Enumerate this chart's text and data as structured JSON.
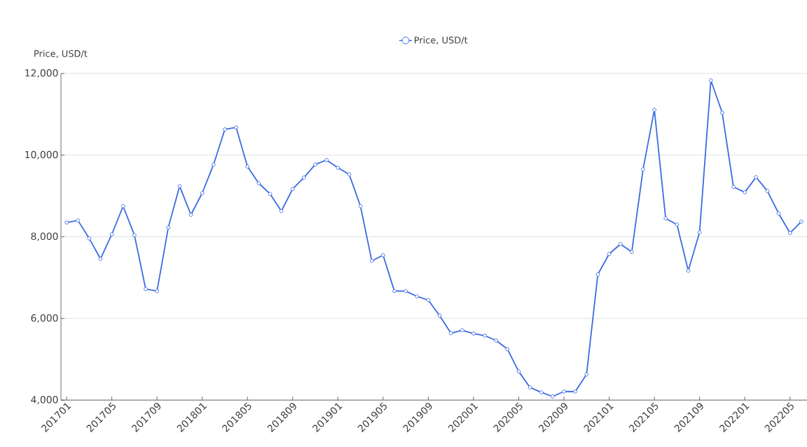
{
  "chart_data": {
    "type": "line",
    "ylabel": "Price, USD/t",
    "categories": [
      "201701",
      null,
      null,
      null,
      "201705",
      null,
      null,
      null,
      "201709",
      null,
      null,
      null,
      "201801",
      null,
      null,
      null,
      "201805",
      null,
      null,
      null,
      "201809",
      null,
      null,
      null,
      "201901",
      null,
      null,
      null,
      "201905",
      null,
      null,
      null,
      "201909",
      null,
      null,
      null,
      "202001",
      null,
      null,
      null,
      "202005",
      null,
      null,
      null,
      "202009",
      null,
      null,
      null,
      "202101",
      null,
      null,
      null,
      "202105",
      null,
      null,
      null,
      "202109",
      null,
      null,
      null,
      "202201",
      null,
      null,
      null,
      "202205",
      null
    ],
    "series": [
      {
        "name": "Price, USD/t",
        "color": "#3b6be0",
        "values": [
          8350,
          8400,
          7960,
          7460,
          8060,
          8750,
          8040,
          6720,
          6670,
          8230,
          9240,
          8540,
          9070,
          9770,
          10630,
          10680,
          9720,
          9310,
          9050,
          8630,
          9170,
          9450,
          9770,
          9880,
          9690,
          9530,
          8750,
          7410,
          7550,
          6670,
          6670,
          6540,
          6450,
          6070,
          5640,
          5710,
          5630,
          5580,
          5460,
          5250,
          4700,
          4310,
          4190,
          4090,
          4210,
          4210,
          4630,
          7080,
          7580,
          7820,
          7630,
          9650,
          11110,
          8450,
          8300,
          7170,
          8110,
          11830,
          11040,
          9220,
          9090,
          9460,
          9120,
          8570,
          8090,
          8370
        ]
      }
    ],
    "ylim": [
      4000,
      12000
    ],
    "yticks": [
      {
        "value": 4000,
        "label": "4,000"
      },
      {
        "value": 6000,
        "label": "6,000"
      },
      {
        "value": 8000,
        "label": "8,000"
      },
      {
        "value": 10000,
        "label": "10,000"
      },
      {
        "value": 12000,
        "label": "12,000"
      }
    ],
    "grid": "y",
    "legend": "top",
    "marker": "circle",
    "line_style": "solid"
  }
}
